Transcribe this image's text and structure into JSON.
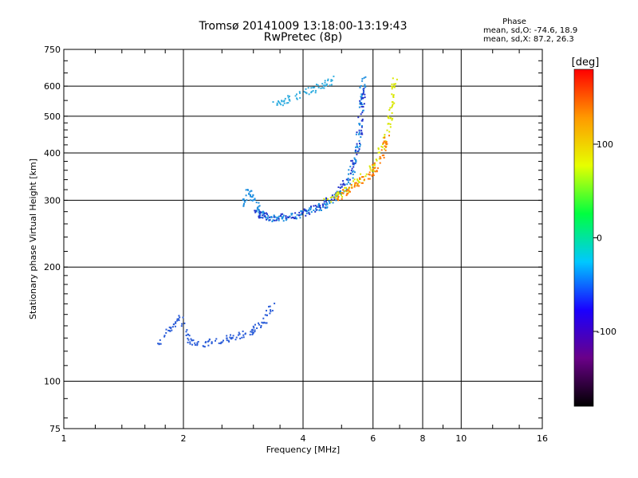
{
  "header": {
    "title": "Tromsø 20141009 13:18:00-13:19:43",
    "subtitle": "RwPretec (8p)",
    "phase_title": "Phase",
    "phase_o": "mean, sd,O: -74.6, 18.9",
    "phase_x": "mean, sd,X:  87.2, 26.3"
  },
  "chart_data": {
    "type": "scatter",
    "title": "Tromsø 20141009 13:18:00-13:19:43",
    "subtitle": "RwPretec (8p)",
    "xlabel": "Frequency [MHz]",
    "ylabel": "Stationary phase Virtual Height [km]",
    "x_scale": "log",
    "y_scale": "log",
    "xlim": [
      1,
      16
    ],
    "ylim": [
      75,
      750
    ],
    "x_ticks": [
      1,
      2,
      4,
      6,
      8,
      10,
      16
    ],
    "x_ticklabels": [
      "1",
      "2",
      "4",
      "6",
      "8",
      "10",
      "16"
    ],
    "y_ticks": [
      75,
      100,
      200,
      300,
      400,
      500,
      600,
      750
    ],
    "y_ticklabels": [
      "75",
      "100",
      "200",
      "300",
      "400",
      "500",
      "600",
      "750"
    ],
    "x_gridlines": [
      2,
      4,
      6,
      8,
      10
    ],
    "y_gridlines": [
      100,
      200,
      300,
      400,
      500,
      600
    ],
    "grid": true,
    "colorbar": {
      "label": "[deg]",
      "min": -180,
      "max": 180,
      "ticks": [
        100,
        0,
        -100
      ],
      "ticklabels": [
        "100",
        "0",
        "-100"
      ],
      "colors": [
        "#000000",
        "#6a0088",
        "#1a00ff",
        "#00c8ff",
        "#00ff40",
        "#e6ff00",
        "#ff9900",
        "#ff0000"
      ]
    },
    "traces": [
      {
        "name": "",
        "color": "#2a5cd8",
        "points": [
          [
            1.7,
            125
          ],
          [
            1.85,
            138
          ],
          [
            1.95,
            147
          ],
          [
            2.05,
            129
          ],
          [
            2.2,
            126
          ],
          [
            2.4,
            128
          ],
          [
            2.6,
            130
          ],
          [
            2.8,
            133
          ],
          [
            3.0,
            137
          ],
          [
            3.2,
            145
          ],
          [
            3.35,
            160
          ]
        ]
      },
      {
        "name": "",
        "color": "#1f8fe0",
        "points": [
          [
            2.8,
            290
          ],
          [
            2.9,
            320
          ],
          [
            3.0,
            300
          ],
          [
            3.1,
            280
          ],
          [
            3.2,
            275
          ],
          [
            3.4,
            270
          ],
          [
            3.6,
            272
          ],
          [
            3.9,
            276
          ],
          [
            4.2,
            282
          ],
          [
            4.5,
            292
          ],
          [
            4.8,
            305
          ],
          [
            5.1,
            330
          ],
          [
            5.3,
            360
          ],
          [
            5.45,
            410
          ],
          [
            5.55,
            480
          ],
          [
            5.6,
            560
          ],
          [
            5.65,
            640
          ]
        ]
      },
      {
        "name": "",
        "color": "#2233cc",
        "points": [
          [
            3.0,
            280
          ],
          [
            3.2,
            273
          ],
          [
            3.6,
            271
          ],
          [
            4.0,
            278
          ],
          [
            4.4,
            290
          ],
          [
            4.8,
            310
          ],
          [
            5.2,
            350
          ],
          [
            5.5,
            430
          ],
          [
            5.6,
            520
          ],
          [
            5.62,
            600
          ]
        ]
      },
      {
        "name": "",
        "color": "#33aee0",
        "points": [
          [
            3.4,
            540
          ],
          [
            3.6,
            550
          ],
          [
            3.9,
            570
          ],
          [
            4.2,
            590
          ],
          [
            4.5,
            605
          ],
          [
            4.8,
            630
          ]
        ]
      },
      {
        "name": "",
        "color": "#d8e600",
        "points": [
          [
            4.5,
            300
          ],
          [
            4.9,
            310
          ],
          [
            5.3,
            330
          ],
          [
            5.7,
            350
          ],
          [
            6.1,
            380
          ],
          [
            6.4,
            430
          ],
          [
            6.6,
            500
          ],
          [
            6.7,
            570
          ],
          [
            6.8,
            630
          ]
        ]
      },
      {
        "name": "",
        "color": "#ff7700",
        "points": [
          [
            4.8,
            305
          ],
          [
            5.2,
            320
          ],
          [
            5.6,
            340
          ],
          [
            6.0,
            360
          ],
          [
            6.3,
            400
          ],
          [
            6.5,
            450
          ]
        ]
      }
    ]
  }
}
